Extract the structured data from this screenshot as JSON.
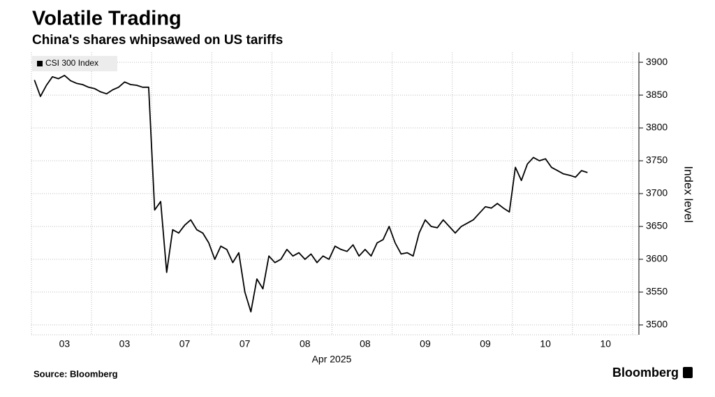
{
  "chart_data": {
    "type": "line",
    "title": "Volatile Trading",
    "subtitle": "China's shares whipsawed on US tariffs",
    "x_label": "Apr 2025",
    "y_label": "Index level",
    "source": "Source: Bloomberg",
    "brand": "Bloomberg",
    "categories": [
      null,
      null,
      null,
      null,
      null,
      "03",
      null,
      null,
      null,
      null,
      null,
      null,
      null,
      null,
      null,
      "03",
      null,
      null,
      null,
      null,
      null,
      null,
      null,
      null,
      null,
      "07",
      null,
      null,
      null,
      null,
      null,
      null,
      null,
      null,
      null,
      "07",
      null,
      null,
      null,
      null,
      null,
      null,
      null,
      null,
      null,
      "08",
      null,
      null,
      null,
      null,
      null,
      null,
      null,
      null,
      null,
      "08",
      null,
      null,
      null,
      null,
      null,
      null,
      null,
      null,
      null,
      "09",
      null,
      null,
      null,
      null,
      null,
      null,
      null,
      null,
      null,
      "09",
      null,
      null,
      null,
      null,
      null,
      null,
      null,
      null,
      null,
      "10",
      null,
      null,
      null,
      null,
      null,
      null,
      null,
      null,
      null,
      "10",
      null,
      null,
      null,
      null
    ],
    "series": [
      {
        "name": "CSI 300 Index",
        "color": "#000000",
        "values": [
          3873,
          3848,
          3865,
          3878,
          3875,
          3880,
          3872,
          3868,
          3866,
          3862,
          3860,
          3855,
          3852,
          3858,
          3862,
          3870,
          3866,
          3865,
          3862,
          3862,
          3675,
          3688,
          3580,
          3645,
          3640,
          3652,
          3660,
          3645,
          3640,
          3625,
          3600,
          3620,
          3615,
          3595,
          3610,
          3550,
          3520,
          3570,
          3555,
          3605,
          3595,
          3600,
          3615,
          3605,
          3610,
          3600,
          3608,
          3595,
          3605,
          3600,
          3620,
          3615,
          3612,
          3622,
          3605,
          3615,
          3605,
          3625,
          3630,
          3650,
          3625,
          3608,
          3610,
          3605,
          3640,
          3660,
          3650,
          3648,
          3660,
          3650,
          3640,
          3650,
          3655,
          3660,
          3670,
          3680,
          3678,
          3685,
          3678,
          3672,
          3740,
          3720,
          3745,
          3755,
          3750,
          3753,
          3740,
          3735,
          3730,
          3728,
          3725,
          3735,
          3732,
          null,
          null,
          null,
          null,
          null,
          null,
          null
        ]
      }
    ],
    "ylim": [
      3485,
      3915
    ],
    "yticks": [
      3500,
      3550,
      3600,
      3650,
      3700,
      3750,
      3800,
      3850,
      3900
    ],
    "grid": true,
    "legend": "top-left"
  }
}
